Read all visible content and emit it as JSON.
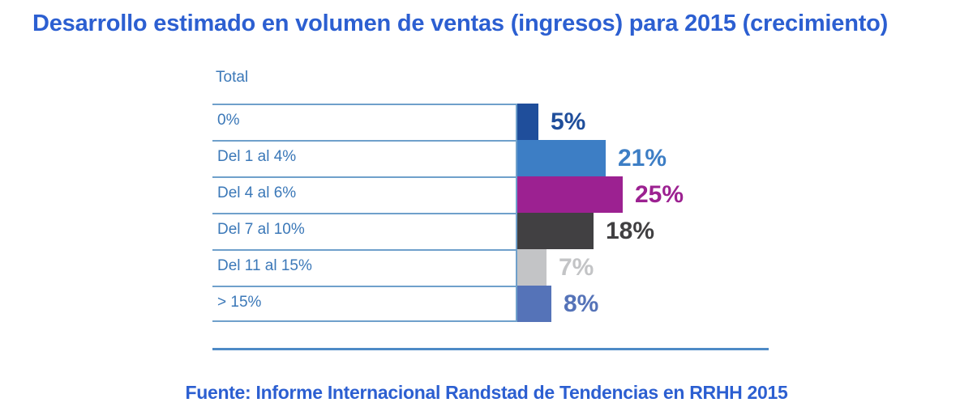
{
  "title": "Desarrollo estimado en volumen de ventas (ingresos) para 2015 (crecimiento)",
  "chart_data": {
    "type": "bar",
    "orientation": "horizontal",
    "title": "Desarrollo estimado en volumen de ventas (ingresos) para 2015 (crecimiento)",
    "group_header": "Total",
    "categories": [
      "0%",
      "Del 1 al 4%",
      "Del 4 al 6%",
      "Del 7 al 10%",
      "Del 11 al 15%",
      "> 15%"
    ],
    "values": [
      5,
      21,
      25,
      18,
      7,
      8
    ],
    "value_labels": [
      "5%",
      "21%",
      "25%",
      "18%",
      "7%",
      "8%"
    ],
    "bar_colors": [
      "#1F4E9B",
      "#3D7EC5",
      "#9C2191",
      "#414042",
      "#C3C4C6",
      "#5573B8"
    ],
    "xlim": [
      0,
      72
    ],
    "grid": "horizontal row separators only",
    "legend": "none",
    "source": "Fuente: Informe Internacional Randstad de Tendencias en RRHH 2015"
  },
  "colors": {
    "title_text": "#2C5FD1",
    "source_text": "#2C5FD1",
    "category_text": "#3B78B8",
    "row_line": "#6FA0CB",
    "baseline": "#4E8AC6",
    "background": "#FFFFFF"
  }
}
